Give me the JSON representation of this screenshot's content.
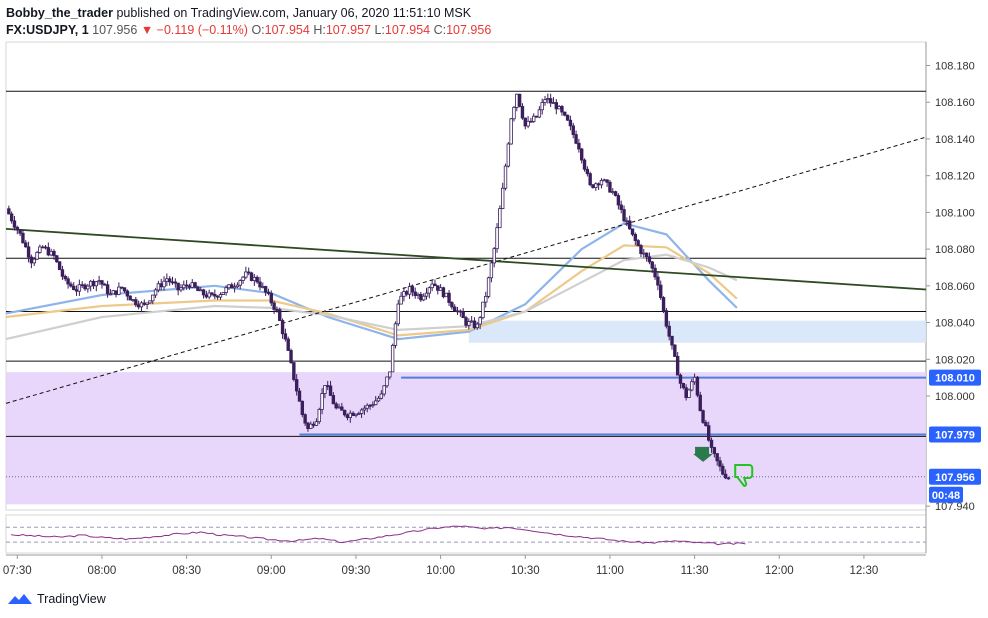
{
  "header": {
    "author": "Bobby_the_trader",
    "published_text": "published on TradingView.com, January 06, 2020 11:51:10 MSK",
    "symbol": "FX:USDJPY, 1",
    "last": "107.956",
    "change": "▼ −0.119 (−0.11%)",
    "o_label": "O:",
    "o_value": "107.954",
    "h_label": "H:",
    "h_value": "107.957",
    "l_label": "L:",
    "l_value": "107.954",
    "c_label": "C:",
    "c_value": "107.956"
  },
  "footer": {
    "brand": "TradingView",
    "logo_icon": "tradingview-logo-icon"
  },
  "colors": {
    "candle": "#3a1f5c",
    "zone_purple": "#e6d3fa",
    "zone_blue": "#d6e6f8",
    "level_blue": "#4f7fd6",
    "trend_green": "#2d4a22",
    "ma_blue": "#8fb4ea",
    "ma_orange": "#edc98a",
    "ma_grey": "#cfcfcf",
    "rsi": "#8a2f8a",
    "signal_green": "#2b7a4b",
    "thumb_green": "#22c322",
    "price_label_bg": "#2962ff"
  },
  "chart_data": {
    "type": "candlestick",
    "symbol": "FX:USDJPY",
    "interval": "1",
    "ylim": [
      107.94,
      108.18
    ],
    "x_range": [
      "07:26",
      "12:52"
    ],
    "x_ticks": [
      "07:30",
      "08:00",
      "08:30",
      "09:00",
      "09:30",
      "10:00",
      "10:30",
      "11:00",
      "11:30",
      "12:00",
      "12:30"
    ],
    "y_ticks": [
      "108.180",
      "108.160",
      "108.140",
      "108.120",
      "108.100",
      "108.080",
      "108.060",
      "108.040",
      "108.020",
      "108.000",
      "107.940"
    ],
    "price_labels": [
      {
        "text": "108.010",
        "value": 108.01,
        "style": "level"
      },
      {
        "text": "107.979",
        "value": 107.979,
        "style": "level"
      },
      {
        "text": "107.956",
        "value": 107.956,
        "style": "last"
      },
      {
        "text": "00:48",
        "value": 107.948,
        "style": "countdown"
      }
    ],
    "close_path": [
      [
        "07:27",
        108.102
      ],
      [
        "07:32",
        108.088
      ],
      [
        "07:36",
        108.074
      ],
      [
        "07:40",
        108.081
      ],
      [
        "07:44",
        108.076
      ],
      [
        "07:48",
        108.062
      ],
      [
        "07:52",
        108.058
      ],
      [
        "07:56",
        108.061
      ],
      [
        "08:00",
        108.063
      ],
      [
        "08:04",
        108.055
      ],
      [
        "08:08",
        108.059
      ],
      [
        "08:12",
        108.052
      ],
      [
        "08:16",
        108.049
      ],
      [
        "08:20",
        108.058
      ],
      [
        "08:24",
        108.064
      ],
      [
        "08:28",
        108.058
      ],
      [
        "08:32",
        108.061
      ],
      [
        "08:36",
        108.056
      ],
      [
        "08:40",
        108.054
      ],
      [
        "08:44",
        108.057
      ],
      [
        "08:48",
        108.061
      ],
      [
        "08:52",
        108.066
      ],
      [
        "08:56",
        108.063
      ],
      [
        "09:00",
        108.054
      ],
      [
        "09:03",
        108.046
      ],
      [
        "09:06",
        108.03
      ],
      [
        "09:09",
        108.01
      ],
      [
        "09:12",
        107.99
      ],
      [
        "09:14",
        107.982
      ],
      [
        "09:17",
        107.988
      ],
      [
        "09:20",
        108.007
      ],
      [
        "09:24",
        107.993
      ],
      [
        "09:28",
        107.99
      ],
      [
        "09:32",
        107.992
      ],
      [
        "09:36",
        107.995
      ],
      [
        "09:40",
        108.0
      ],
      [
        "09:43",
        108.014
      ],
      [
        "09:46",
        108.052
      ],
      [
        "09:50",
        108.058
      ],
      [
        "09:54",
        108.054
      ],
      [
        "09:58",
        108.062
      ],
      [
        "10:02",
        108.056
      ],
      [
        "10:06",
        108.048
      ],
      [
        "10:10",
        108.04
      ],
      [
        "10:14",
        108.038
      ],
      [
        "10:17",
        108.055
      ],
      [
        "10:20",
        108.08
      ],
      [
        "10:23",
        108.112
      ],
      [
        "10:26",
        108.152
      ],
      [
        "10:28",
        108.165
      ],
      [
        "10:31",
        108.147
      ],
      [
        "10:35",
        108.152
      ],
      [
        "10:38",
        108.162
      ],
      [
        "10:42",
        108.158
      ],
      [
        "10:46",
        108.149
      ],
      [
        "10:50",
        108.136
      ],
      [
        "10:54",
        108.114
      ],
      [
        "10:58",
        108.118
      ],
      [
        "11:02",
        108.111
      ],
      [
        "11:06",
        108.097
      ],
      [
        "11:09",
        108.087
      ],
      [
        "11:12",
        108.079
      ],
      [
        "11:15",
        108.073
      ],
      [
        "11:18",
        108.062
      ],
      [
        "11:20",
        108.046
      ],
      [
        "11:23",
        108.026
      ],
      [
        "11:26",
        108.007
      ],
      [
        "11:28",
        108.0
      ],
      [
        "11:31",
        108.01
      ],
      [
        "11:33",
        107.993
      ],
      [
        "11:35",
        107.982
      ],
      [
        "11:37",
        107.97
      ],
      [
        "11:39",
        107.964
      ],
      [
        "11:41",
        107.958
      ],
      [
        "11:43",
        107.956
      ]
    ],
    "horizontal_levels": [
      108.166,
      108.075,
      108.046,
      108.019,
      107.978
    ],
    "level_lines": [
      {
        "value": 108.01,
        "from": "09:46",
        "to": "12:52"
      },
      {
        "value": 107.979,
        "from": "09:10",
        "to": "12:52"
      }
    ],
    "zones": [
      {
        "name": "purple",
        "from": "07:26",
        "to": "12:52",
        "top": 108.013,
        "bottom": 107.941
      },
      {
        "name": "blue",
        "from": "10:10",
        "to": "12:52",
        "top": 108.041,
        "bottom": 108.029
      }
    ],
    "trendlines": [
      {
        "style": "solid",
        "from": [
          "07:26",
          108.091
        ],
        "to": [
          "12:52",
          108.058
        ]
      },
      {
        "style": "dashed",
        "from": [
          "07:26",
          107.996
        ],
        "to": [
          "12:52",
          108.141
        ]
      }
    ],
    "moving_averages": [
      {
        "color": "ma_blue",
        "points": [
          [
            "07:26",
            108.045
          ],
          [
            "08:00",
            108.055
          ],
          [
            "08:40",
            108.06
          ],
          [
            "09:00",
            108.056
          ],
          [
            "09:20",
            108.043
          ],
          [
            "09:45",
            108.031
          ],
          [
            "10:10",
            108.035
          ],
          [
            "10:30",
            108.05
          ],
          [
            "10:50",
            108.08
          ],
          [
            "11:05",
            108.094
          ],
          [
            "11:20",
            108.088
          ],
          [
            "11:35",
            108.063
          ],
          [
            "11:45",
            108.048
          ]
        ]
      },
      {
        "color": "ma_orange",
        "points": [
          [
            "07:26",
            108.043
          ],
          [
            "08:00",
            108.049
          ],
          [
            "08:40",
            108.052
          ],
          [
            "09:00",
            108.052
          ],
          [
            "09:20",
            108.045
          ],
          [
            "09:45",
            108.033
          ],
          [
            "10:10",
            108.036
          ],
          [
            "10:30",
            108.046
          ],
          [
            "10:50",
            108.068
          ],
          [
            "11:05",
            108.082
          ],
          [
            "11:20",
            108.081
          ],
          [
            "11:35",
            108.067
          ],
          [
            "11:45",
            108.053
          ]
        ]
      },
      {
        "color": "ma_grey",
        "points": [
          [
            "07:26",
            108.031
          ],
          [
            "08:00",
            108.043
          ],
          [
            "08:40",
            108.049
          ],
          [
            "09:00",
            108.048
          ],
          [
            "09:20",
            108.044
          ],
          [
            "09:45",
            108.036
          ],
          [
            "10:10",
            108.038
          ],
          [
            "10:30",
            108.046
          ],
          [
            "10:50",
            108.062
          ],
          [
            "11:05",
            108.074
          ],
          [
            "11:20",
            108.077
          ],
          [
            "11:35",
            108.07
          ],
          [
            "11:45",
            108.063
          ]
        ]
      }
    ],
    "rsi_values": [
      48,
      46,
      44,
      47,
      43,
      41,
      45,
      49,
      52,
      47,
      44,
      40,
      38,
      42,
      36,
      41,
      47,
      53,
      59,
      62,
      57,
      60,
      55,
      49,
      45,
      41,
      37,
      35,
      38,
      35,
      33,
      34
    ],
    "markers": [
      {
        "icon": "down-arrow-icon",
        "time": "11:33",
        "value": 107.969
      },
      {
        "icon": "thumbs-down-icon",
        "time": "11:49",
        "value": 107.957
      }
    ]
  }
}
